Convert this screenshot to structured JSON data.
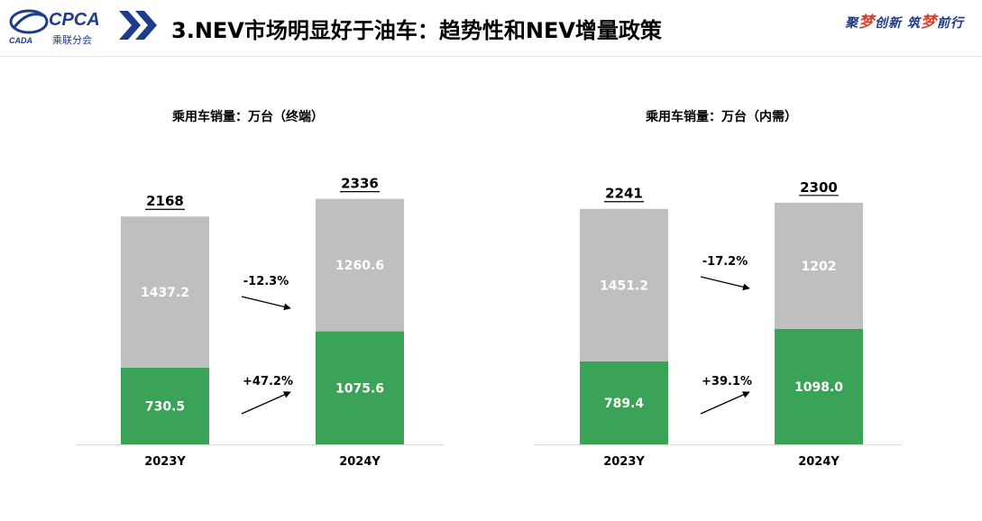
{
  "header": {
    "logo_text": "CPCA",
    "logo_sub": "乘联分会",
    "logo_mark": "CADA",
    "title": "3.NEV市场明显好于油车：趋势性和NEV增量政策",
    "slogan_parts": [
      "聚",
      "梦",
      "创新 筑",
      "梦",
      "前行"
    ]
  },
  "colors": {
    "nev": "#3aa357",
    "ice": "#bfbfbf",
    "brand_blue": "#1f3c8c",
    "accent_red": "#d8402b"
  },
  "chart_data": [
    {
      "type": "bar",
      "stacked": true,
      "title": "乘用车销量：万台（终端）",
      "categories": [
        "2023Y",
        "2024Y"
      ],
      "series": [
        {
          "values": [
            730.5,
            1075.6
          ],
          "labels": [
            "730.5",
            "1075.6"
          ],
          "color": "#3aa357"
        },
        {
          "values": [
            1437.2,
            1260.6
          ],
          "labels": [
            "1437.2",
            "1260.6"
          ],
          "color": "#bfbfbf"
        }
      ],
      "totals": [
        2168,
        2336
      ],
      "changes": {
        "bottom": "+47.2%",
        "top": "-12.3%"
      },
      "ylim": [
        0,
        2600
      ],
      "grid": false,
      "legend": "none"
    },
    {
      "type": "bar",
      "stacked": true,
      "title": "乘用车销量：万台（内需）",
      "categories": [
        "2023Y",
        "2024Y"
      ],
      "series": [
        {
          "values": [
            789.4,
            1098.0
          ],
          "labels": [
            "789.4",
            "1098.0"
          ],
          "color": "#3aa357"
        },
        {
          "values": [
            1451.2,
            1202
          ],
          "labels": [
            "1451.2",
            "1202"
          ],
          "color": "#bfbfbf"
        }
      ],
      "totals": [
        2241,
        2300
      ],
      "changes": {
        "bottom": "+39.1%",
        "top": "-17.2%"
      },
      "ylim": [
        0,
        2600
      ],
      "grid": false,
      "legend": "none"
    }
  ]
}
